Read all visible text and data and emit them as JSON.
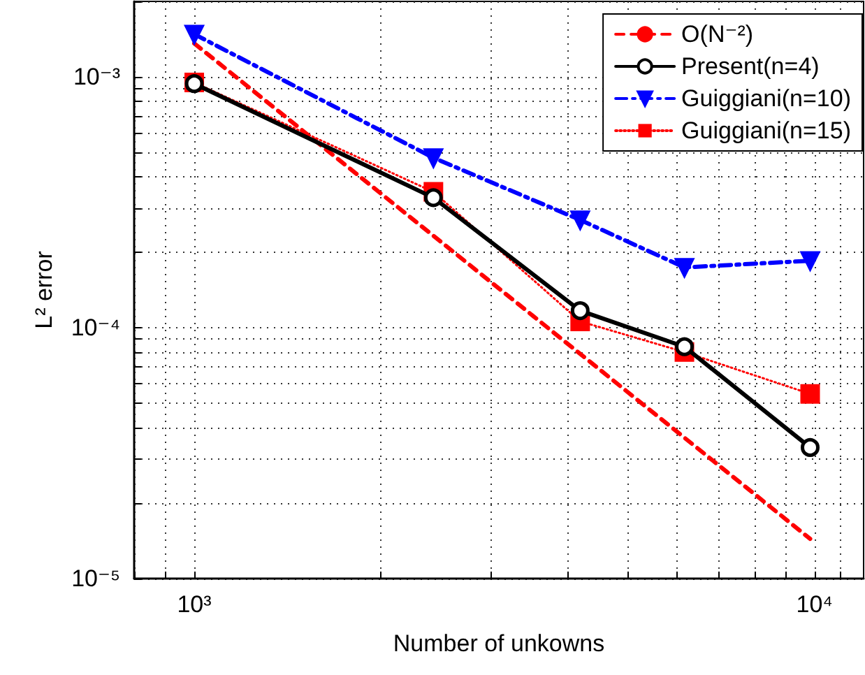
{
  "chart_data": {
    "type": "line",
    "xlabel": "Number of unkowns",
    "ylabel": "L² error",
    "log": "xy",
    "grid": true,
    "legend": "top right",
    "xlim": [
      800,
      12000
    ],
    "ylim": [
      1e-05,
      0.002
    ],
    "xticks": [
      {
        "value": 800,
        "label": null
      },
      {
        "value": 900,
        "label": null
      },
      {
        "value": 1000,
        "label": "10³"
      },
      {
        "value": 2000,
        "label": null
      },
      {
        "value": 3000,
        "label": null
      },
      {
        "value": 4000,
        "label": null
      },
      {
        "value": 5000,
        "label": null
      },
      {
        "value": 6000,
        "label": null
      },
      {
        "value": 7000,
        "label": null
      },
      {
        "value": 8000,
        "label": null
      },
      {
        "value": 9000,
        "label": null
      },
      {
        "value": 10000,
        "label": "10⁴"
      },
      {
        "value": 11000,
        "label": null
      }
    ],
    "yticks": [
      {
        "value": 1e-05,
        "label": "10⁻⁵"
      },
      {
        "value": 2e-05,
        "label": null
      },
      {
        "value": 3e-05,
        "label": null
      },
      {
        "value": 4e-05,
        "label": null
      },
      {
        "value": 5e-05,
        "label": null
      },
      {
        "value": 6e-05,
        "label": null
      },
      {
        "value": 7e-05,
        "label": null
      },
      {
        "value": 8e-05,
        "label": null
      },
      {
        "value": 9e-05,
        "label": null
      },
      {
        "value": 0.0001,
        "label": "10⁻⁴"
      },
      {
        "value": 0.0002,
        "label": null
      },
      {
        "value": 0.0003,
        "label": null
      },
      {
        "value": 0.0004,
        "label": null
      },
      {
        "value": 0.0005,
        "label": null
      },
      {
        "value": 0.0006,
        "label": null
      },
      {
        "value": 0.0007,
        "label": null
      },
      {
        "value": 0.0008,
        "label": null
      },
      {
        "value": 0.0009,
        "label": null
      },
      {
        "value": 0.001,
        "label": "10⁻³"
      },
      {
        "value": 0.002,
        "label": null
      }
    ],
    "series": [
      {
        "name": "O(N⁻²)",
        "color": "#ff0000",
        "line_style": "dashed",
        "marker": "none",
        "x": [
          1000,
          9840
        ],
        "values": [
          0.00136,
          1.44e-05
        ]
      },
      {
        "name": "Present(n=4)",
        "color": "#000000",
        "line_style": "solid",
        "marker": "circle",
        "x": [
          1000,
          2430,
          4190,
          6170,
          9840
        ],
        "values": [
          0.00094,
          0.00033,
          0.000117,
          8.4e-05,
          3.33e-05
        ]
      },
      {
        "name": "Guiggiani(n=10)",
        "color": "#0000ff",
        "line_style": "dashdot",
        "marker": "triangle-down",
        "x": [
          1000,
          2430,
          4190,
          6170,
          9840
        ],
        "values": [
          0.00148,
          0.000476,
          0.000269,
          0.000174,
          0.000185
        ]
      },
      {
        "name": "Guiggiani(n=15)",
        "color": "#ff0000",
        "line_style": "dotted",
        "marker": "square",
        "x": [
          1000,
          2430,
          4190,
          6170,
          9840
        ],
        "values": [
          0.00095,
          0.000348,
          0.000106,
          8e-05,
          5.45e-05
        ]
      }
    ]
  }
}
